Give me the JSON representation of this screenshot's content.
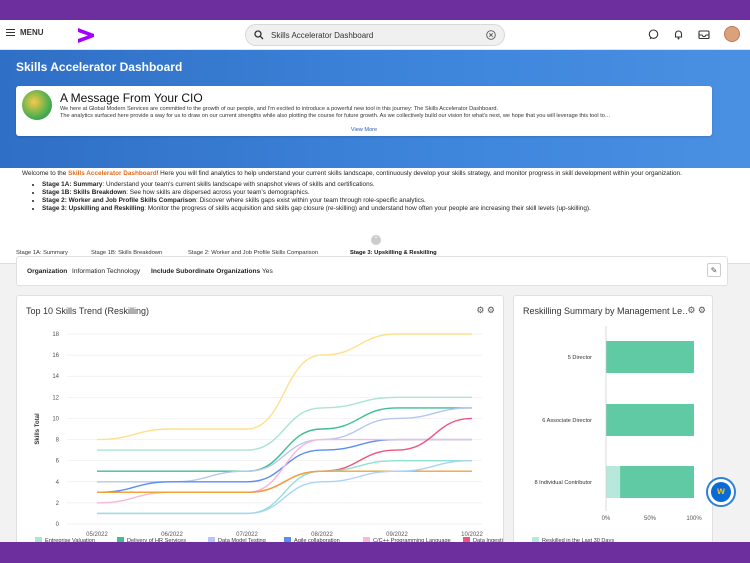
{
  "topbar": {
    "menu_label": "MENU",
    "search_value": "Skills Accelerator Dashboard"
  },
  "banner": {
    "page_title": "Skills Accelerator Dashboard",
    "cio_heading": "A Message From Your CIO",
    "cio_line1": "We here at Global Modern Services are committed to the growth of our people, and I'm excited to introduce a powerful new tool in this journey: The Skills Accelerator Dashboard.",
    "cio_line2": "The analytics surfaced here provide a way for us to draw on our current strengths while also plotting the course for future growth. As we collectively build our vision for what's next, we hope that you will leverage this tool to…",
    "view_more": "View More"
  },
  "intro": {
    "welcome_pre": "Welcome to the ",
    "welcome_hl": "Skills Accelerator Dashboard",
    "welcome_post": "! Here you will find analytics to help understand your current skills landscape, continuously develop your skills strategy, and monitor progress in skill development within your organization.",
    "stages": [
      {
        "name": "Stage 1A: Summary",
        "desc": ": Understand your team's current skills landscape with snapshot views of skills and certifications."
      },
      {
        "name": "Stage 1B: Skills Breakdown",
        "desc": ": See how skills are dispersed across your team's demographics."
      },
      {
        "name": "Stage 2: Worker and Job Profile Skills Comparison",
        "desc": ": Discover where skills gaps exist within your team through role-specific analytics."
      },
      {
        "name": "Stage 3: Upskilling and Reskilling",
        "desc": ": Monitor the progress of skills acquisition and skills gap closure (re-skilling) and understand how often your people are increasing their skill levels (up-skilling)."
      }
    ]
  },
  "tabs": [
    "Stage 1A: Summary",
    "Stage 1B: Skills Breakdown",
    "Stage 2: Worker and Job Profile Skills Comparison",
    "Stage 3: Upskilling & Reskilling"
  ],
  "filter": {
    "org_label": "Organization",
    "org_value": "Information Technology",
    "sub_label": "Include Subordinate Organizations",
    "sub_value": "Yes"
  },
  "chart_data": [
    {
      "type": "line",
      "title": "Top 10 Skills Trend (Reskilling)",
      "ylabel": "Skills Total",
      "ylim": [
        0,
        18
      ],
      "yticks": [
        0,
        2,
        4,
        6,
        8,
        10,
        12,
        14,
        16,
        18
      ],
      "x": [
        "05/2022",
        "06/2022",
        "07/2022",
        "08/2022",
        "09/2022",
        "10/2022"
      ],
      "series": [
        {
          "name": "Entreprise Valuation",
          "color": "#a8e6cf",
          "values": [
            7,
            7,
            7,
            11,
            12,
            12
          ]
        },
        {
          "name": "Delivery of HR Services",
          "color": "#3fbf8f",
          "values": [
            5,
            5,
            5,
            9,
            11,
            11
          ]
        },
        {
          "name": "Data Model Testing",
          "color": "#b3c7f2",
          "values": [
            4,
            4,
            5,
            8,
            10,
            11
          ]
        },
        {
          "name": "Agile collaboration",
          "color": "#5b8def",
          "values": [
            3,
            4,
            4,
            7,
            8,
            8
          ]
        },
        {
          "name": "C/C++ Programming Language",
          "color": "#f9b8d6",
          "values": [
            2,
            3,
            3,
            8,
            8,
            8
          ]
        },
        {
          "name": "Data Ingestion",
          "color": "#f0547e",
          "values": [
            3,
            3,
            3,
            5,
            7,
            10
          ]
        },
        {
          "name": "",
          "color": "#ffe08a",
          "values": [
            8,
            9,
            9,
            16,
            18,
            18
          ]
        },
        {
          "name": "",
          "color": "#8fe0d6",
          "values": [
            1,
            1,
            1,
            5,
            6,
            6
          ]
        },
        {
          "name": "",
          "color": "#f2a33a",
          "values": [
            3,
            3,
            3,
            5,
            5,
            5
          ]
        },
        {
          "name": "",
          "color": "#aad4f5",
          "values": [
            1,
            1,
            1,
            4,
            5,
            6
          ]
        }
      ]
    },
    {
      "type": "bar",
      "title": "Reskilling Summary by Management Le…",
      "categories": [
        "5 Director",
        "6 Associate Director",
        "8 Individual Contributor"
      ],
      "series": [
        {
          "name": "Reskilled in the Last 30 Days",
          "values": [
            0,
            0,
            0.16
          ]
        },
        {
          "name": "",
          "values": [
            1,
            1,
            0.84
          ]
        }
      ],
      "xticks": [
        "0%",
        "50%",
        "100%"
      ]
    }
  ]
}
